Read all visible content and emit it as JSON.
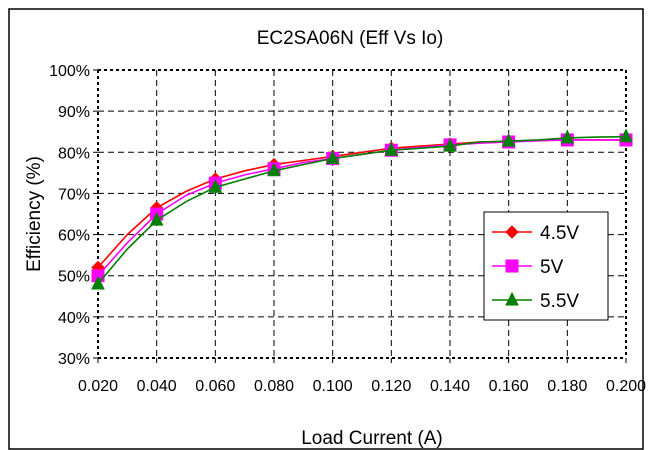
{
  "chart_data": {
    "type": "line",
    "title": "EC2SA06N  (Eff Vs Io)",
    "xlabel": "Load Current (A)",
    "ylabel": "Efficiency (%)",
    "x": [
      0.02,
      0.03,
      0.04,
      0.05,
      0.06,
      0.07,
      0.08,
      0.09,
      0.1,
      0.11,
      0.12,
      0.13,
      0.14,
      0.15,
      0.16,
      0.17,
      0.18,
      0.19,
      0.2
    ],
    "x_ticks": [
      "0.020",
      "0.040",
      "0.060",
      "0.080",
      "0.100",
      "0.120",
      "0.140",
      "0.160",
      "0.180",
      "0.200"
    ],
    "x_tick_values": [
      0.02,
      0.04,
      0.06,
      0.08,
      0.1,
      0.12,
      0.14,
      0.16,
      0.18,
      0.2
    ],
    "y_ticks": [
      "30%",
      "40%",
      "50%",
      "60%",
      "70%",
      "80%",
      "90%",
      "100%"
    ],
    "y_tick_values": [
      30,
      40,
      50,
      60,
      70,
      80,
      90,
      100
    ],
    "xlim": [
      0.02,
      0.2
    ],
    "ylim": [
      30,
      100
    ],
    "grid": true,
    "legend_position": "right",
    "marker_x": [
      0.02,
      0.04,
      0.06,
      0.08,
      0.1,
      0.12,
      0.14,
      0.16,
      0.18,
      0.2
    ],
    "series": [
      {
        "name": "4.5V",
        "color": "#ff0000",
        "marker": "diamond",
        "values": [
          52,
          60,
          66.5,
          70.5,
          73.5,
          75.5,
          77,
          78,
          79,
          80,
          81,
          81.5,
          82,
          82.5,
          82.7,
          82.9,
          83,
          83,
          83
        ]
      },
      {
        "name": "5V",
        "color": "#ff00ff",
        "marker": "square",
        "values": [
          50,
          58,
          65,
          69.5,
          72.5,
          74.5,
          76,
          77.5,
          78.5,
          79.5,
          80.5,
          81.2,
          81.8,
          82.2,
          82.5,
          82.8,
          83,
          83,
          83
        ]
      },
      {
        "name": "5.5V",
        "color": "#008000",
        "marker": "triangle",
        "values": [
          48,
          56.5,
          63.5,
          68,
          71.5,
          73.5,
          75.5,
          77,
          78.5,
          79.5,
          80.5,
          81,
          81.5,
          82.5,
          82.7,
          83,
          83.5,
          83.7,
          83.8
        ]
      }
    ]
  }
}
